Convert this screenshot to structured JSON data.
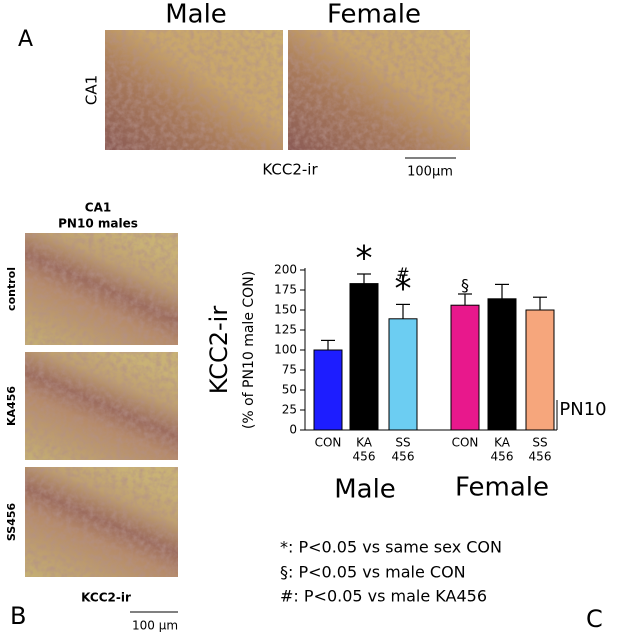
{
  "panel_a": {
    "letter": "A",
    "columns": [
      "Male",
      "Female"
    ],
    "row_label": "CA1",
    "caption": "KCC2-ir",
    "scale": "100μm"
  },
  "panel_b": {
    "letter": "B",
    "title": [
      "CA1",
      "PN10 males"
    ],
    "rows": [
      "control",
      "KA456",
      "SS456"
    ],
    "caption": "KCC2-ir",
    "scale": "100 μm"
  },
  "panel_c": {
    "letter": "C",
    "legend": [
      "*: P<0.05 vs same sex CON",
      "§: P<0.05 vs male CON",
      "#: P<0.05 vs male KA456"
    ]
  },
  "chart_data": {
    "type": "bar",
    "y_label": "KCC2-ir",
    "y_sublabel": "(% of PN10 male CON)",
    "categories": [
      [
        "CON"
      ],
      [
        "KA",
        "456"
      ],
      [
        "SS",
        "456"
      ],
      [
        "CON"
      ],
      [
        "KA",
        "456"
      ],
      [
        "SS",
        "456"
      ]
    ],
    "groups": [
      "Male",
      "Female"
    ],
    "age_label": "PN10",
    "values": [
      100,
      183,
      139,
      156,
      164,
      150
    ],
    "errors": [
      12,
      12,
      18,
      14,
      18,
      16
    ],
    "colors": [
      "#1d1dff",
      "#000000",
      "#6ccdf2",
      "#e8188c",
      "#000000",
      "#f6a67c"
    ],
    "markers": [
      null,
      [
        "*"
      ],
      [
        "#",
        "*"
      ],
      [
        "§"
      ],
      null,
      null
    ],
    "ylim": [
      0,
      200
    ],
    "yticks": [
      0,
      25,
      50,
      75,
      100,
      125,
      150,
      175,
      200
    ]
  }
}
